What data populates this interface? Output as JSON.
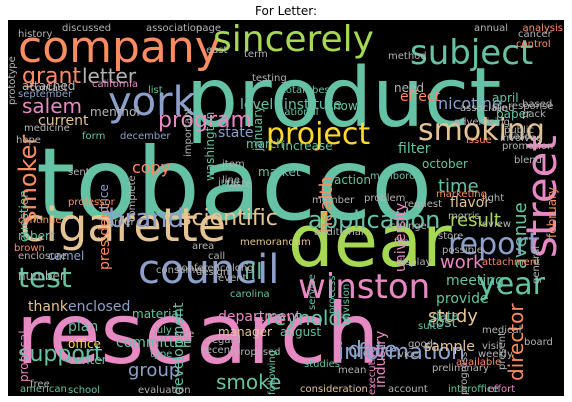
{
  "title": "For Letter:",
  "palette": {
    "teal": "#66c2a5",
    "orange": "#fc8d62",
    "blue": "#8da0cb",
    "pink": "#e78ac3",
    "green": "#a6d854",
    "yellow": "#ffd92f",
    "tan": "#e5c494",
    "gray": "#b3b3b3"
  },
  "words": [
    {
      "text": "tobacco",
      "color": "teal"
    },
    {
      "text": "research",
      "color": "pink"
    },
    {
      "text": "product",
      "color": "teal"
    },
    {
      "text": "dear",
      "color": "green"
    },
    {
      "text": "company",
      "color": "orange"
    },
    {
      "text": "cigarette",
      "color": "tan"
    },
    {
      "text": "york",
      "color": "blue"
    },
    {
      "text": "council",
      "color": "blue"
    },
    {
      "text": "sincerely",
      "color": "green"
    },
    {
      "text": "subject",
      "color": "teal"
    },
    {
      "text": "project",
      "color": "yellow"
    },
    {
      "text": "smoking",
      "color": "tan"
    },
    {
      "text": "street",
      "color": "pink"
    },
    {
      "text": "winston",
      "color": "pink"
    },
    {
      "text": "report",
      "color": "blue"
    },
    {
      "text": "application",
      "color": "teal"
    },
    {
      "text": "scientific",
      "color": "tan"
    },
    {
      "text": "year",
      "color": "teal"
    },
    {
      "text": "test",
      "color": "teal"
    },
    {
      "text": "brand",
      "color": "blue"
    },
    {
      "text": "program",
      "color": "pink"
    },
    {
      "text": "smoker",
      "color": "orange"
    },
    {
      "text": "information",
      "color": "blue"
    },
    {
      "text": "reynolds",
      "color": "teal"
    },
    {
      "text": "support",
      "color": "teal"
    },
    {
      "text": "smoke",
      "color": "teal"
    },
    {
      "text": "date",
      "color": "blue"
    },
    {
      "text": "director",
      "color": "orange"
    },
    {
      "text": "grant",
      "color": "orange"
    },
    {
      "text": "letter",
      "color": "gray"
    },
    {
      "text": "salem",
      "color": "pink"
    },
    {
      "text": "result",
      "color": "green"
    },
    {
      "text": "work",
      "color": "pink"
    },
    {
      "text": "avenue",
      "color": "teal"
    },
    {
      "text": "health",
      "color": "orange"
    },
    {
      "text": "group",
      "color": "blue"
    },
    {
      "text": "study",
      "color": "tan"
    },
    {
      "text": "ill",
      "color": "teal"
    },
    {
      "text": "department",
      "color": "pink"
    },
    {
      "text": "enclosed",
      "color": "blue"
    },
    {
      "text": "thank",
      "color": "tan"
    },
    {
      "text": "copy",
      "color": "orange"
    },
    {
      "text": "time",
      "color": "teal"
    },
    {
      "text": "nicotine",
      "color": "blue"
    },
    {
      "text": "menthol",
      "color": "gray"
    },
    {
      "text": "attached",
      "color": "gray"
    },
    {
      "text": "level",
      "color": "teal"
    },
    {
      "text": "institute",
      "color": "teal"
    },
    {
      "text": "meeting",
      "color": "teal"
    },
    {
      "text": "filter",
      "color": "teal"
    },
    {
      "text": "state",
      "color": "blue"
    },
    {
      "text": "plan",
      "color": "teal"
    },
    {
      "text": "office",
      "color": "yellow"
    },
    {
      "text": "center",
      "color": "teal"
    },
    {
      "text": "committee",
      "color": "teal"
    },
    {
      "text": "material",
      "color": "teal"
    },
    {
      "text": "current",
      "color": "tan"
    },
    {
      "text": "development",
      "color": "teal"
    },
    {
      "text": "cost",
      "color": "teal"
    },
    {
      "text": "data",
      "color": "teal"
    },
    {
      "text": "provide",
      "color": "teal"
    },
    {
      "text": "sample",
      "color": "tan"
    },
    {
      "text": "flavor",
      "color": "tan"
    },
    {
      "text": "effect",
      "color": "orange"
    },
    {
      "text": "industry",
      "color": "pink"
    },
    {
      "text": "october",
      "color": "teal"
    },
    {
      "text": "paper",
      "color": "teal"
    },
    {
      "text": "april",
      "color": "teal"
    },
    {
      "text": "know",
      "color": "teal"
    },
    {
      "text": "march",
      "color": "teal"
    },
    {
      "text": "university",
      "color": "pink"
    },
    {
      "text": "manager",
      "color": "tan"
    },
    {
      "text": "president",
      "color": "orange"
    },
    {
      "text": "washington",
      "color": "teal"
    },
    {
      "text": "camel",
      "color": "blue"
    },
    {
      "text": "action",
      "color": "teal"
    },
    {
      "text": "market",
      "color": "teal"
    },
    {
      "text": "price",
      "color": "blue"
    },
    {
      "text": "question",
      "color": "teal"
    },
    {
      "text": "august",
      "color": "teal"
    },
    {
      "text": "increase",
      "color": "teal"
    },
    {
      "text": "january",
      "color": "teal"
    },
    {
      "text": "total",
      "color": "teal"
    },
    {
      "text": "best",
      "color": "teal"
    },
    {
      "text": "june",
      "color": "teal"
    },
    {
      "text": "number",
      "color": "gray"
    },
    {
      "text": "robert",
      "color": "teal"
    },
    {
      "text": "proposal",
      "color": "pink"
    },
    {
      "text": "need",
      "color": "gray"
    },
    {
      "text": "february",
      "color": "orange"
    },
    {
      "text": "light",
      "color": "gray"
    },
    {
      "text": "form",
      "color": "teal"
    },
    {
      "text": "december",
      "color": "blue"
    },
    {
      "text": "july",
      "color": "teal"
    },
    {
      "text": "consumer",
      "color": "gray"
    },
    {
      "text": "carolina",
      "color": "teal"
    },
    {
      "text": "national",
      "color": "teal"
    },
    {
      "text": "list",
      "color": "teal"
    },
    {
      "text": "september",
      "color": "blue"
    },
    {
      "text": "american",
      "color": "teal"
    },
    {
      "text": "school",
      "color": "teal"
    },
    {
      "text": "evaluation",
      "color": "gray"
    },
    {
      "text": "consideration",
      "color": "tan"
    },
    {
      "text": "account",
      "color": "gray"
    },
    {
      "text": "interoffice",
      "color": "teal"
    },
    {
      "text": "effort",
      "color": "pink"
    },
    {
      "text": "studies",
      "color": "teal"
    },
    {
      "text": "executive",
      "color": "pink"
    },
    {
      "text": "process",
      "color": "teal"
    },
    {
      "text": "division",
      "color": "teal"
    },
    {
      "text": "service",
      "color": "teal"
    },
    {
      "text": "additional",
      "color": "gray"
    },
    {
      "text": "conference",
      "color": "gray"
    },
    {
      "text": "marlboro",
      "color": "teal"
    },
    {
      "text": "brown",
      "color": "orange"
    },
    {
      "text": "enclosure",
      "color": "gray"
    },
    {
      "text": "sale",
      "color": "gray"
    },
    {
      "text": "regard",
      "color": "gray"
    },
    {
      "text": "recent",
      "color": "gray"
    },
    {
      "text": "type",
      "color": "teal"
    },
    {
      "text": "review",
      "color": "gray"
    },
    {
      "text": "marketing",
      "color": "orange"
    },
    {
      "text": "morris",
      "color": "gray"
    },
    {
      "text": "vice",
      "color": "gray"
    },
    {
      "text": "store",
      "color": "gray"
    },
    {
      "text": "request",
      "color": "gray"
    },
    {
      "text": "attachment",
      "color": "orange"
    },
    {
      "text": "memorandum",
      "color": "tan"
    },
    {
      "text": "suite",
      "color": "teal"
    },
    {
      "text": "medical",
      "color": "gray"
    },
    {
      "text": "display",
      "color": "gray"
    },
    {
      "text": "good",
      "color": "gray"
    },
    {
      "text": "available",
      "color": "orange"
    },
    {
      "text": "proposed",
      "color": "gray"
    },
    {
      "text": "following",
      "color": "teal"
    },
    {
      "text": "mean",
      "color": "gray"
    },
    {
      "text": "weekly",
      "color": "gray"
    },
    {
      "text": "problem",
      "color": "gray"
    },
    {
      "text": "association",
      "color": "gray"
    },
    {
      "text": "discussed",
      "color": "gray"
    },
    {
      "text": "page",
      "color": "gray"
    },
    {
      "text": "term",
      "color": "gray"
    },
    {
      "text": "method",
      "color": "gray"
    },
    {
      "text": "annual",
      "color": "gray"
    },
    {
      "text": "analysis",
      "color": "orange"
    },
    {
      "text": "east",
      "color": "gray"
    },
    {
      "text": "cancer",
      "color": "gray"
    },
    {
      "text": "control",
      "color": "orange"
    },
    {
      "text": "prototype",
      "color": "gray"
    },
    {
      "text": "california",
      "color": "pink"
    },
    {
      "text": "contact",
      "color": "gray"
    },
    {
      "text": "medicine",
      "color": "gray"
    },
    {
      "text": "hope",
      "color": "gray"
    },
    {
      "text": "sent",
      "color": "gray"
    },
    {
      "text": "item",
      "color": "gray"
    },
    {
      "text": "line",
      "color": "gray"
    },
    {
      "text": "pack",
      "color": "gray"
    },
    {
      "text": "based",
      "color": "gray"
    },
    {
      "text": "response",
      "color": "gray"
    },
    {
      "text": "public",
      "color": "gray"
    },
    {
      "text": "case",
      "color": "gray"
    },
    {
      "text": "promotion",
      "color": "gray"
    },
    {
      "text": "blend",
      "color": "gray"
    },
    {
      "text": "issue",
      "color": "orange"
    },
    {
      "text": "testing",
      "color": "gray"
    },
    {
      "text": "fund",
      "color": "gray"
    },
    {
      "text": "advertising",
      "color": "gray"
    },
    {
      "text": "associate",
      "color": "gray"
    },
    {
      "text": "important",
      "color": "gray"
    },
    {
      "text": "complete",
      "color": "gray"
    },
    {
      "text": "professor",
      "color": "orange"
    },
    {
      "text": "order",
      "color": "gray"
    },
    {
      "text": "design",
      "color": "gray"
    },
    {
      "text": "event",
      "color": "gray"
    },
    {
      "text": "call",
      "color": "gray"
    },
    {
      "text": "long",
      "color": "gray"
    },
    {
      "text": "area",
      "color": "gray"
    },
    {
      "text": "free",
      "color": "gray"
    },
    {
      "text": "present",
      "color": "gray"
    },
    {
      "text": "preliminary",
      "color": "gray"
    },
    {
      "text": "progress",
      "color": "gray"
    },
    {
      "text": "general",
      "color": "gray"
    },
    {
      "text": "continue",
      "color": "orange"
    },
    {
      "text": "possible",
      "color": "gray"
    },
    {
      "text": "taste",
      "color": "gray"
    },
    {
      "text": "change",
      "color": "gray"
    },
    {
      "text": "member",
      "color": "gray"
    },
    {
      "text": "visit",
      "color": "gray"
    },
    {
      "text": "board",
      "color": "gray"
    },
    {
      "text": "file",
      "color": "gray"
    },
    {
      "text": "involved",
      "color": "gray"
    },
    {
      "text": "history",
      "color": "gray"
    }
  ]
}
